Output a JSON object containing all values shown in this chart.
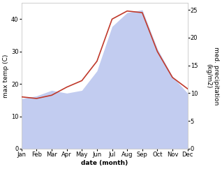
{
  "months": [
    "Jan",
    "Feb",
    "Mar",
    "Apr",
    "May",
    "Jun",
    "Jul",
    "Aug",
    "Sep",
    "Oct",
    "Nov",
    "Dec"
  ],
  "month_positions": [
    0,
    1,
    2,
    3,
    4,
    5,
    6,
    7,
    8,
    9,
    10,
    11
  ],
  "temp_max": [
    16.0,
    15.5,
    16.5,
    19.0,
    21.0,
    27.0,
    40.0,
    42.5,
    42.0,
    30.0,
    22.0,
    18.5
  ],
  "precip": [
    9.0,
    9.5,
    10.5,
    10.0,
    10.5,
    14.0,
    22.0,
    24.5,
    25.0,
    18.0,
    13.0,
    10.0
  ],
  "temp_color": "#c0392b",
  "precip_fill_color": "#b8c4ee",
  "temp_ylim": [
    0,
    45
  ],
  "precip_ylim": [
    0,
    26.25
  ],
  "temp_yticks": [
    0,
    10,
    20,
    30,
    40
  ],
  "precip_yticks": [
    0,
    5,
    10,
    15,
    20,
    25
  ],
  "xlabel": "date (month)",
  "ylabel_left": "max temp (C)",
  "ylabel_right": "med. precipitation\n(kg/m2)",
  "bg_color": "#ffffff",
  "label_fontsize": 6.5,
  "tick_fontsize": 6.0,
  "linewidth": 1.2
}
